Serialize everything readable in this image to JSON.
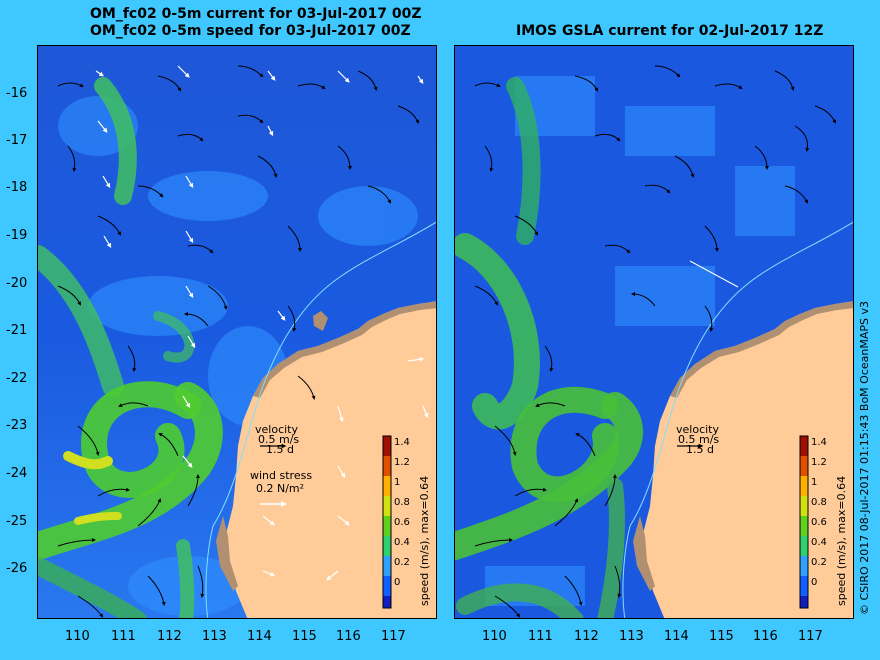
{
  "titles": {
    "left_line1": "OM_fc02 0-5m current for 03-Jul-2017 00Z",
    "left_line2": "OM_fc02 0-5m speed for 03-Jul-2017 00Z",
    "right": "IMOS GSLA current for 02-Jul-2017 12Z"
  },
  "axes": {
    "lat_ticks": [
      "-16",
      "-17",
      "-18",
      "-19",
      "-20",
      "-21",
      "-22",
      "-23",
      "-24",
      "-25",
      "-26"
    ],
    "lon_ticks": [
      "110",
      "111",
      "112",
      "113",
      "114",
      "115",
      "116",
      "117"
    ],
    "lon_range": [
      109.1,
      118.0
    ],
    "lat_range": [
      -27.0,
      -15.0
    ]
  },
  "legend": {
    "velocity_label": "velocity",
    "velocity_scale": "0.5 m/s",
    "velocity_time": "1.5 d",
    "wind_label": "wind stress",
    "wind_scale": "0.2 N/m²"
  },
  "colorbar": {
    "title_left": "speed (m/s), max=0.64",
    "title_right": "speed (m/s), max=0.64",
    "ticks": [
      "1.4",
      "1.2",
      "1",
      "0.8",
      "0.6",
      "0.4",
      "0.2",
      "0"
    ],
    "range": [
      -0.1,
      1.5
    ],
    "colors": [
      "#1020c0",
      "#1060ff",
      "#30a0ff",
      "#30d070",
      "#60d020",
      "#d0e010",
      "#ffb000",
      "#e05000",
      "#a01000"
    ]
  },
  "credit": "© CSIRO 2017  08-Jul-2017 01:15:43 BoM OceanMAPS v3",
  "colors": {
    "sea_bg": "#1c60e0",
    "land": "#ffcc99",
    "shelf": "#b09070",
    "frame_bg": "#3ec8ff"
  }
}
